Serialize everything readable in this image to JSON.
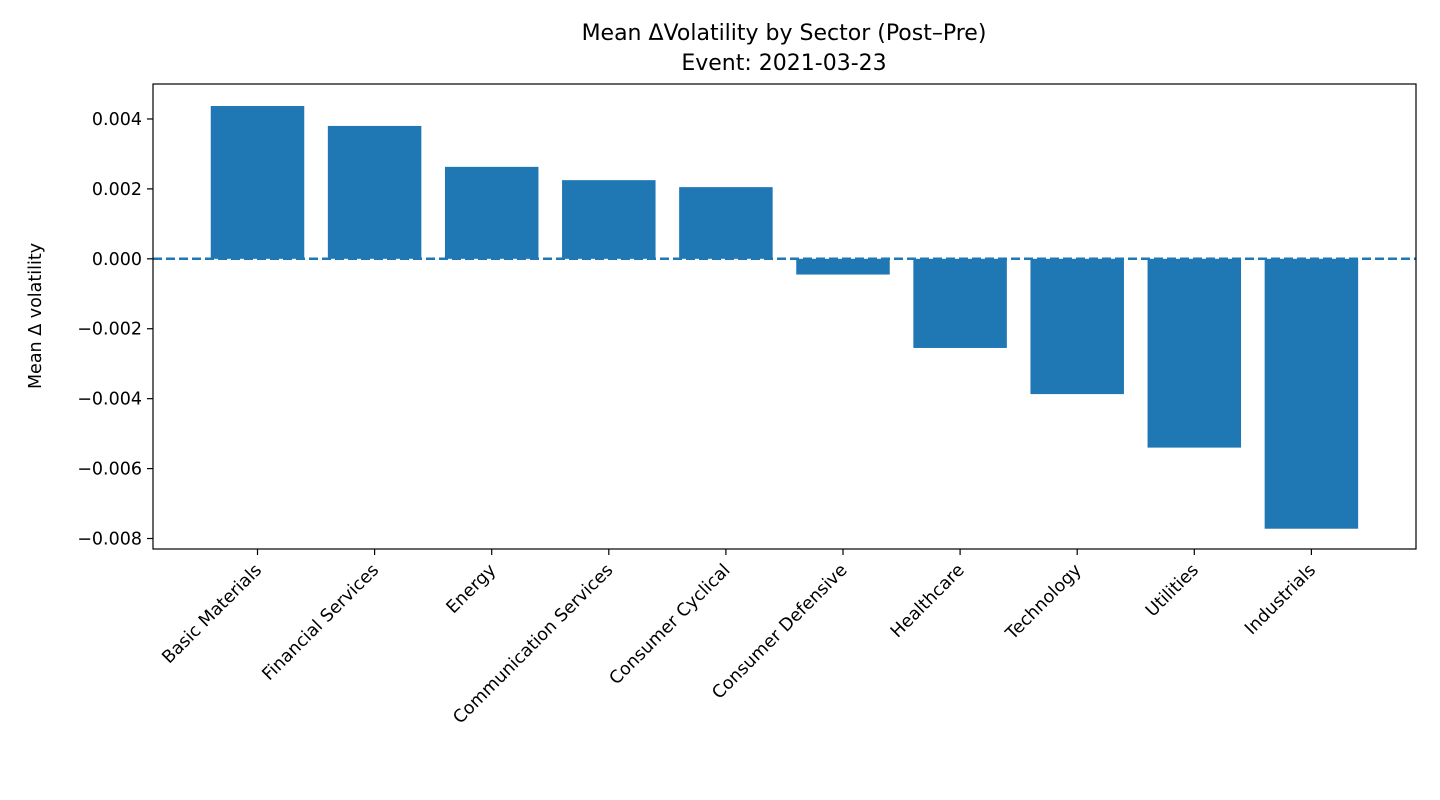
{
  "chart_data": {
    "type": "bar",
    "title": "Mean ΔVolatility by Sector (Post–Pre)",
    "subtitle": "Event: 2021-03-23",
    "xlabel": "",
    "ylabel": "Mean Δ volatility",
    "categories": [
      "Basic Materials",
      "Financial Services",
      "Energy",
      "Communication Services",
      "Consumer Cyclical",
      "Consumer Defensive",
      "Healthcare",
      "Technology",
      "Utilities",
      "Industrials"
    ],
    "values": [
      0.00437,
      0.0038,
      0.00263,
      0.00225,
      0.00205,
      -0.00045,
      -0.00255,
      -0.00387,
      -0.0054,
      -0.00772
    ],
    "ylim": [
      -0.0083,
      0.005
    ],
    "yticks": [
      "0.004",
      "0.002",
      "0.000",
      "−0.002",
      "−0.004",
      "−0.006",
      "−0.008"
    ],
    "ytick_values": [
      0.004,
      0.002,
      0.0,
      -0.002,
      -0.004,
      -0.006,
      -0.008
    ],
    "reference_line": {
      "y": 0,
      "style": "dashed"
    },
    "grid": false,
    "legend": "none",
    "bar_color": "#1f77b4"
  }
}
